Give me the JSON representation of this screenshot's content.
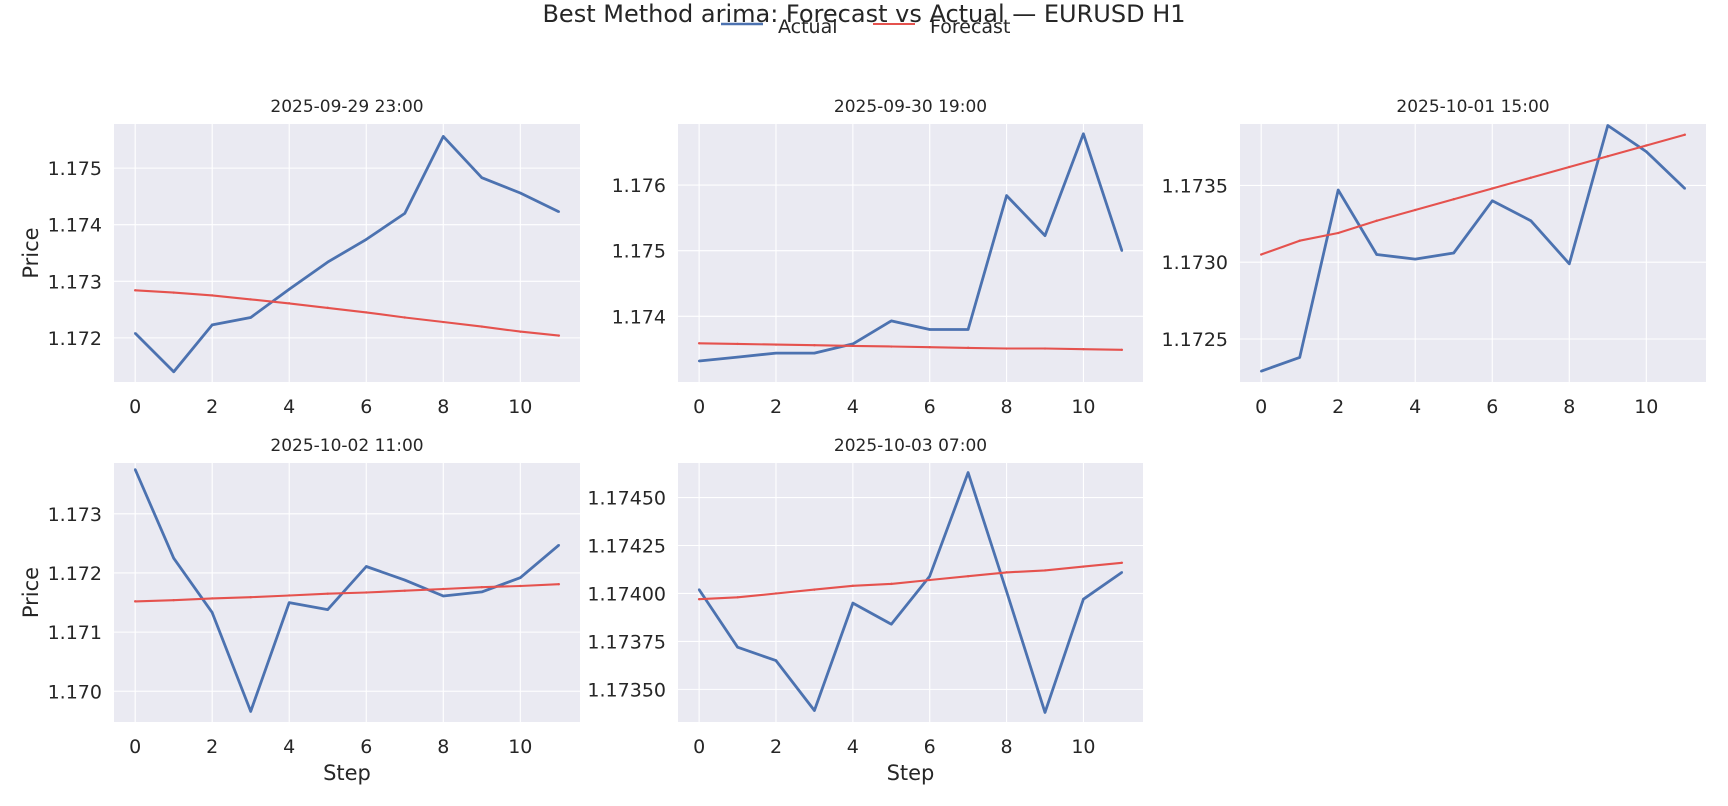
{
  "figure": {
    "title": "Best Method arima: Forecast vs Actual — EURUSD H1",
    "legend": {
      "placement": "top-center",
      "entries": [
        "Actual",
        "Forecast"
      ]
    }
  },
  "colors": {
    "actual": "#4c72b0",
    "forecast": "#e5524e",
    "panel_background": "#eaeaf2",
    "grid": "#ffffff"
  },
  "chart_data": [
    {
      "type": "line",
      "title": "2025-09-29 23:00",
      "xlabel": "",
      "ylabel": "Price",
      "x": [
        0,
        1,
        2,
        3,
        4,
        5,
        6,
        7,
        8,
        9,
        10,
        11
      ],
      "xticks": [
        0,
        2,
        4,
        6,
        8,
        10
      ],
      "xlim": [
        -0.55,
        11.55
      ],
      "ylim": [
        1.17122,
        1.17578
      ],
      "yticks": [
        1.172,
        1.173,
        1.174,
        1.175
      ],
      "ytick_labels": [
        "1.172",
        "1.173",
        "1.174",
        "1.175"
      ],
      "grid": true,
      "series": [
        {
          "name": "Actual",
          "values": [
            1.17208,
            1.1714,
            1.17223,
            1.17236,
            1.17286,
            1.17334,
            1.17374,
            1.1742,
            1.17556,
            1.17483,
            1.17456,
            1.17423
          ]
        },
        {
          "name": "Forecast",
          "values": [
            1.17284,
            1.1728,
            1.17275,
            1.17268,
            1.17261,
            1.17253,
            1.17245,
            1.17236,
            1.17228,
            1.1722,
            1.17211,
            1.17204
          ]
        }
      ]
    },
    {
      "type": "line",
      "title": "2025-09-30 19:00",
      "xlabel": "",
      "ylabel": "",
      "x": [
        0,
        1,
        2,
        3,
        4,
        5,
        6,
        7,
        8,
        9,
        10,
        11
      ],
      "xticks": [
        0,
        2,
        4,
        6,
        8,
        10
      ],
      "xlim": [
        -0.55,
        11.55
      ],
      "ylim": [
        1.173,
        1.17693
      ],
      "yticks": [
        1.174,
        1.175,
        1.176
      ],
      "ytick_labels": [
        "1.174",
        "1.175",
        "1.176"
      ],
      "grid": true,
      "series": [
        {
          "name": "Actual",
          "values": [
            1.17332,
            1.17338,
            1.17344,
            1.17344,
            1.17358,
            1.17393,
            1.1738,
            1.1738,
            1.17584,
            1.17523,
            1.17678,
            1.175
          ]
        },
        {
          "name": "Forecast",
          "values": [
            1.17359,
            1.17358,
            1.17357,
            1.17356,
            1.17355,
            1.17354,
            1.17353,
            1.17352,
            1.17351,
            1.17351,
            1.1735,
            1.17349
          ]
        }
      ]
    },
    {
      "type": "line",
      "title": "2025-10-01 15:00",
      "xlabel": "",
      "ylabel": "",
      "x": [
        0,
        1,
        2,
        3,
        4,
        5,
        6,
        7,
        8,
        9,
        10,
        11
      ],
      "xticks": [
        0,
        2,
        4,
        6,
        8,
        10
      ],
      "xlim": [
        -0.55,
        11.55
      ],
      "ylim": [
        1.17222,
        1.1739
      ],
      "yticks": [
        1.1725,
        1.173,
        1.1735
      ],
      "ytick_labels": [
        "1.1725",
        "1.1730",
        "1.1735"
      ],
      "grid": true,
      "series": [
        {
          "name": "Actual",
          "values": [
            1.17229,
            1.17238,
            1.17347,
            1.17305,
            1.17302,
            1.17306,
            1.1734,
            1.17327,
            1.17299,
            1.17389,
            1.17372,
            1.17348
          ]
        },
        {
          "name": "Forecast",
          "values": [
            1.17305,
            1.17314,
            1.17319,
            1.17327,
            1.17334,
            1.17341,
            1.17348,
            1.17355,
            1.17362,
            1.17369,
            1.17376,
            1.17383
          ]
        }
      ]
    },
    {
      "type": "line",
      "title": "2025-10-02 11:00",
      "xlabel": "Step",
      "ylabel": "Price",
      "x": [
        0,
        1,
        2,
        3,
        4,
        5,
        6,
        7,
        8,
        9,
        10,
        11
      ],
      "xticks": [
        0,
        2,
        4,
        6,
        8,
        10
      ],
      "xlim": [
        -0.55,
        11.55
      ],
      "ylim": [
        1.16948,
        1.17386
      ],
      "yticks": [
        1.17,
        1.171,
        1.172,
        1.173
      ],
      "ytick_labels": [
        "1.170",
        "1.171",
        "1.172",
        "1.173"
      ],
      "grid": true,
      "series": [
        {
          "name": "Actual",
          "values": [
            1.17375,
            1.17225,
            1.17133,
            1.16966,
            1.1715,
            1.17138,
            1.17211,
            1.17188,
            1.17161,
            1.17168,
            1.17192,
            1.17247
          ]
        },
        {
          "name": "Forecast",
          "values": [
            1.17152,
            1.17154,
            1.17157,
            1.17159,
            1.17162,
            1.17165,
            1.17167,
            1.1717,
            1.17173,
            1.17176,
            1.17178,
            1.17181
          ]
        }
      ]
    },
    {
      "type": "line",
      "title": "2025-10-03 07:00",
      "xlabel": "Step",
      "ylabel": "",
      "x": [
        0,
        1,
        2,
        3,
        4,
        5,
        6,
        7,
        8,
        9,
        10,
        11
      ],
      "xticks": [
        0,
        2,
        4,
        6,
        8,
        10
      ],
      "xlim": [
        -0.55,
        11.55
      ],
      "ylim": [
        1.17333,
        1.17468
      ],
      "yticks": [
        1.1735,
        1.17375,
        1.174,
        1.17425,
        1.1745
      ],
      "ytick_labels": [
        "1.17350",
        "1.17375",
        "1.17400",
        "1.17425",
        "1.17450"
      ],
      "grid": true,
      "series": [
        {
          "name": "Actual",
          "values": [
            1.17402,
            1.17372,
            1.17365,
            1.17339,
            1.17395,
            1.17384,
            1.17409,
            1.17463,
            1.17401,
            1.17338,
            1.17397,
            1.17411
          ]
        },
        {
          "name": "Forecast",
          "values": [
            1.17397,
            1.17398,
            1.174,
            1.17402,
            1.17404,
            1.17405,
            1.17407,
            1.17409,
            1.17411,
            1.17412,
            1.17414,
            1.17416
          ]
        }
      ]
    }
  ]
}
